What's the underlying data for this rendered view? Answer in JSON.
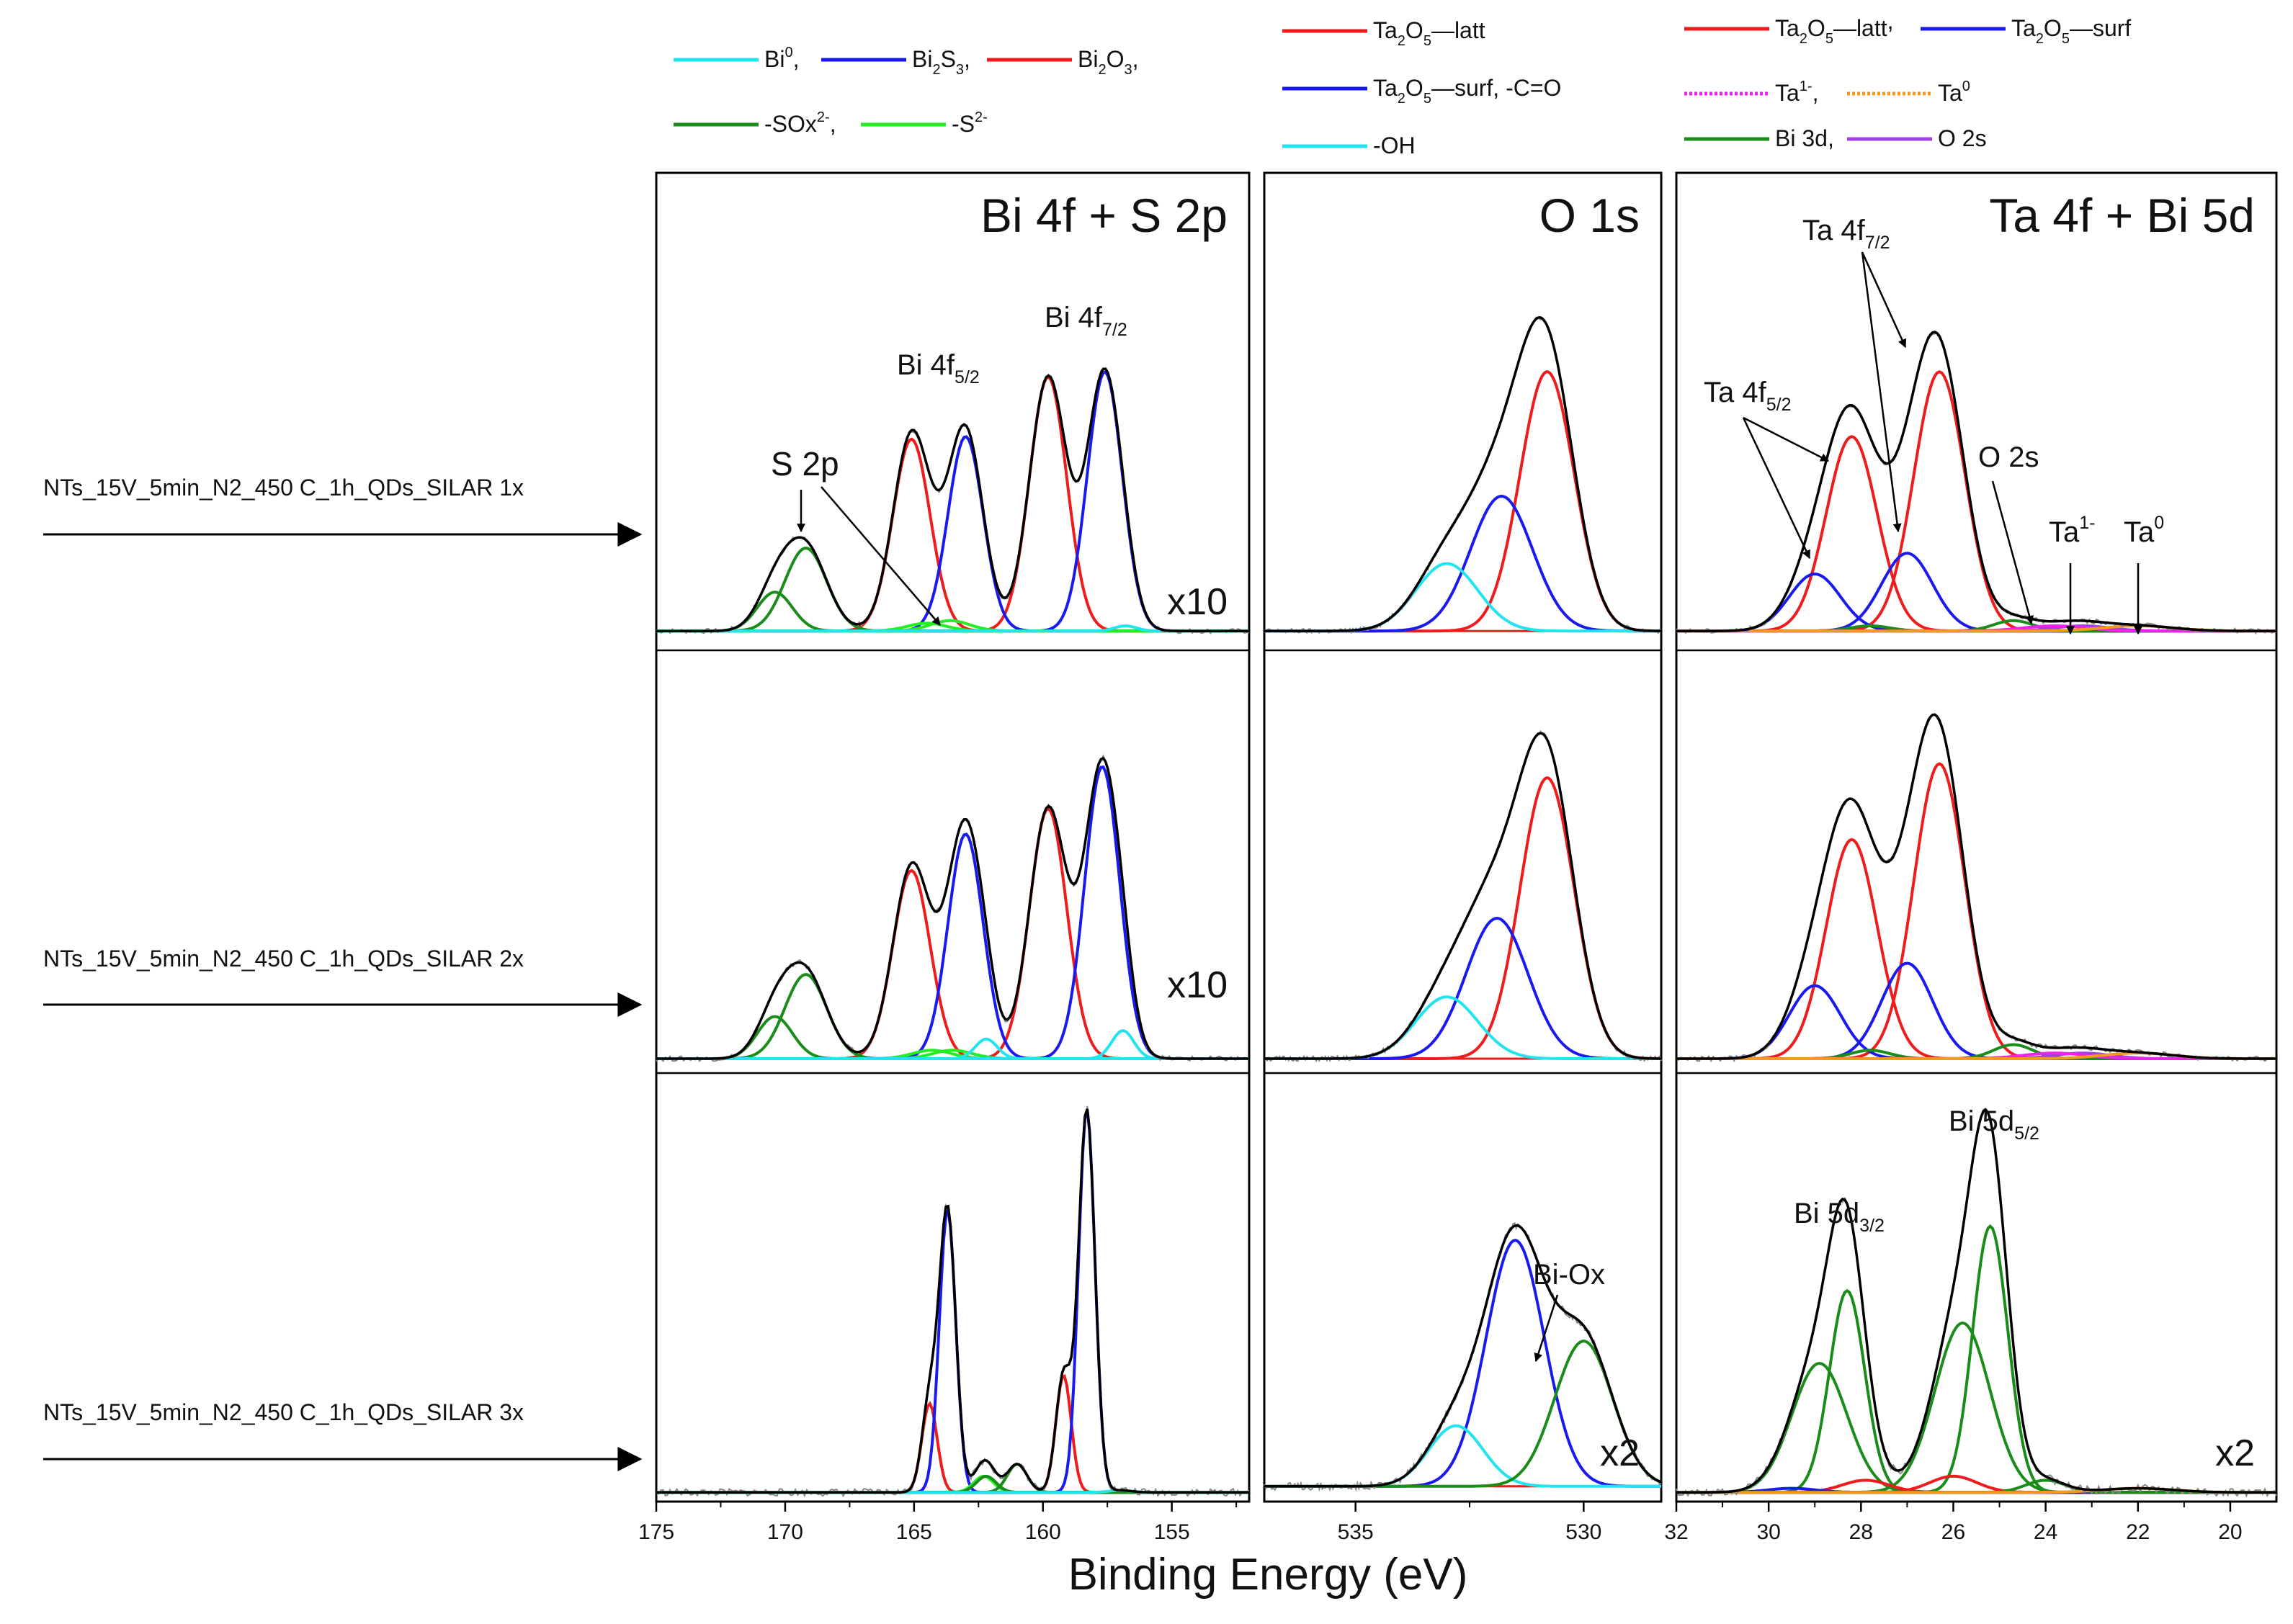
{
  "chart_data": {
    "type": "line",
    "figure": "XPS spectra",
    "xlabel": "Binding Energy (eV)",
    "row_labels": [
      "NTs_15V_5min_N2_450 C_1h_QDs_SILAR 1x",
      "NTs_15V_5min_N2_450 C_1h_QDs_SILAR 2x",
      "NTs_15V_5min_N2_450 C_1h_QDs_SILAR 3x"
    ],
    "colors": {
      "envelope": "#000000",
      "red": "#ee1c1c",
      "blue": "#1a1aee",
      "cyan": "#22e4ee",
      "darkgreen": "#1a8c1a",
      "lightgreen": "#22ee22",
      "magenta": "#ee22ee",
      "orange": "#f39a1e",
      "purple": "#a040e6",
      "grey": "#888888"
    },
    "panels": [
      {
        "title": "Bi 4f + S 2p",
        "xlim": [
          175,
          152
        ],
        "ticks": [
          175,
          170,
          165,
          160,
          155
        ],
        "tick_labels": [
          "175",
          "170",
          "165",
          "160",
          "155"
        ],
        "legend": [
          {
            "label": "Bi",
            "sup": "0",
            "sep": ",",
            "color": "#22e4ee"
          },
          {
            "label": "Bi",
            "sub": "2",
            "label2": "S",
            "sub2": "3",
            "sep": ",",
            "color": "#1a1aee"
          },
          {
            "label": "Bi",
            "sub": "2",
            "label2": "O",
            "sub2": "3",
            "sep": ",",
            "color": "#ee1c1c"
          },
          {
            "label": "-SOx",
            "sup": "2-",
            "sep": ",",
            "color": "#1a8c1a"
          },
          {
            "label": "-S",
            "sup": "2-",
            "sep": "",
            "color": "#22ee22"
          }
        ],
        "annotations": [
          {
            "text": "S 2p"
          },
          {
            "text": "Bi 4f",
            "sub": "5/2"
          },
          {
            "text": "Bi 4f",
            "sub": "7/2"
          }
        ],
        "rows": [
          {
            "multiplier": "x10",
            "baseline": 0.005,
            "components": [
              {
                "name": "Bi2O3 4f5/2",
                "color": "red",
                "center": 165.1,
                "fwhm": 1.7,
                "height": 0.74
              },
              {
                "name": "Bi2O3 4f7/2",
                "color": "red",
                "center": 159.8,
                "fwhm": 1.7,
                "height": 0.98
              },
              {
                "name": "Bi2S3 4f5/2",
                "color": "blue",
                "center": 163.0,
                "fwhm": 1.6,
                "height": 0.75
              },
              {
                "name": "Bi2S3 4f7/2",
                "color": "blue",
                "center": 157.6,
                "fwhm": 1.6,
                "height": 1.0
              },
              {
                "name": "SOx 2p1/2",
                "color": "darkgreen",
                "center": 170.4,
                "fwhm": 1.6,
                "height": 0.15
              },
              {
                "name": "SOx 2p3/2",
                "color": "darkgreen",
                "center": 169.2,
                "fwhm": 1.9,
                "height": 0.32
              },
              {
                "name": "S2- a",
                "color": "lightgreen",
                "center": 164.5,
                "fwhm": 1.8,
                "height": 0.03
              },
              {
                "name": "S2- b",
                "color": "lightgreen",
                "center": 163.6,
                "fwhm": 1.8,
                "height": 0.04
              },
              {
                "name": "Bi0",
                "color": "cyan",
                "center": 156.8,
                "fwhm": 1.0,
                "height": 0.02
              }
            ]
          },
          {
            "multiplier": "x10",
            "baseline": 0.005,
            "components": [
              {
                "name": "Bi2O3 4f5/2",
                "color": "red",
                "center": 165.1,
                "fwhm": 1.7,
                "height": 0.67
              },
              {
                "name": "Bi2O3 4f7/2",
                "color": "red",
                "center": 159.8,
                "fwhm": 1.7,
                "height": 0.89
              },
              {
                "name": "Bi2S3 4f5/2",
                "color": "blue",
                "center": 163.0,
                "fwhm": 1.6,
                "height": 0.8
              },
              {
                "name": "Bi2S3 4f7/2",
                "color": "blue",
                "center": 157.7,
                "fwhm": 1.6,
                "height": 1.04
              },
              {
                "name": "SOx 2p1/2",
                "color": "darkgreen",
                "center": 170.4,
                "fwhm": 1.6,
                "height": 0.15
              },
              {
                "name": "SOx 2p3/2",
                "color": "darkgreen",
                "center": 169.2,
                "fwhm": 1.9,
                "height": 0.3
              },
              {
                "name": "S2- a",
                "color": "lightgreen",
                "center": 164.3,
                "fwhm": 1.8,
                "height": 0.03
              },
              {
                "name": "S2- b",
                "color": "lightgreen",
                "center": 163.5,
                "fwhm": 1.8,
                "height": 0.03
              },
              {
                "name": "Bi0 4f5/2",
                "color": "cyan",
                "center": 162.2,
                "fwhm": 1.0,
                "height": 0.07
              },
              {
                "name": "Bi0 4f7/2",
                "color": "cyan",
                "center": 156.9,
                "fwhm": 1.0,
                "height": 0.1
              }
            ]
          },
          {
            "multiplier": "",
            "baseline": 0.005,
            "components": [
              {
                "name": "Bi2O3 4f5/2",
                "color": "red",
                "center": 164.4,
                "fwhm": 0.7,
                "height": 0.22
              },
              {
                "name": "Bi2O3 4f7/2",
                "color": "red",
                "center": 159.2,
                "fwhm": 0.7,
                "height": 0.29
              },
              {
                "name": "Bi2S3 4f5/2",
                "color": "blue",
                "center": 163.7,
                "fwhm": 0.75,
                "height": 0.7
              },
              {
                "name": "Bi2S3 4f7/2",
                "color": "blue",
                "center": 158.3,
                "fwhm": 0.75,
                "height": 0.95
              },
              {
                "name": "S2- a",
                "color": "lightgreen",
                "center": 162.3,
                "fwhm": 0.9,
                "height": 0.04
              },
              {
                "name": "SOx",
                "color": "darkgreen",
                "center": 161.0,
                "fwhm": 0.9,
                "height": 0.07
              },
              {
                "name": "SOx b",
                "color": "darkgreen",
                "center": 162.2,
                "fwhm": 0.9,
                "height": 0.04
              },
              {
                "name": "Bi0",
                "color": "cyan",
                "center": 157.0,
                "fwhm": 1.0,
                "height": 0.005
              }
            ]
          }
        ]
      },
      {
        "title": "O 1s",
        "xlim": [
          537.0,
          528.3
        ],
        "ticks": [
          535,
          530
        ],
        "tick_labels": [
          "535",
          "530"
        ],
        "legend": [
          {
            "label": "Ta",
            "sub": "2",
            "label2": "O",
            "sub2": "5",
            "label3": "—latt",
            "sep": "",
            "color": "#ee1c1c"
          },
          {
            "label": "Ta",
            "sub": "2",
            "label2": "O",
            "sub2": "5",
            "label3": "—surf, -C=O",
            "sep": "",
            "color": "#1a1aee"
          },
          {
            "label": "-OH",
            "sep": "",
            "color": "#22e4ee"
          }
        ],
        "annotations": [
          {
            "text": "Bi-Ox"
          }
        ],
        "rows": [
          {
            "multiplier": "",
            "baseline": 0.005,
            "components": [
              {
                "name": "Ta2O5 latt",
                "color": "red",
                "center": 530.8,
                "fwhm": 1.4,
                "height": 1.0
              },
              {
                "name": "Ta2O5 surf, -C=O",
                "color": "blue",
                "center": 531.8,
                "fwhm": 1.6,
                "height": 0.52
              },
              {
                "name": "-OH",
                "color": "cyan",
                "center": 533.0,
                "fwhm": 1.6,
                "height": 0.26
              }
            ]
          },
          {
            "multiplier": "",
            "baseline": 0.005,
            "components": [
              {
                "name": "Ta2O5 latt",
                "color": "red",
                "center": 530.8,
                "fwhm": 1.4,
                "height": 1.0
              },
              {
                "name": "Ta2O5 surf, -C=O",
                "color": "blue",
                "center": 531.9,
                "fwhm": 1.6,
                "height": 0.5
              },
              {
                "name": "-OH",
                "color": "cyan",
                "center": 533.0,
                "fwhm": 1.6,
                "height": 0.22
              }
            ]
          },
          {
            "multiplier": "x2",
            "baseline": 0.02,
            "components": [
              {
                "name": "Ta2O5 surf, -C=O",
                "color": "blue",
                "center": 531.5,
                "fwhm": 1.5,
                "height": 0.61
              },
              {
                "name": "-OH",
                "color": "cyan",
                "center": 532.8,
                "fwhm": 1.4,
                "height": 0.15
              },
              {
                "name": "Bi-Ox",
                "color": "darkgreen",
                "center": 530.0,
                "fwhm": 1.5,
                "height": 0.36
              }
            ]
          }
        ]
      },
      {
        "title": "Ta 4f + Bi 5d",
        "xlim": [
          32,
          19
        ],
        "ticks": [
          32,
          30,
          28,
          26,
          24,
          22,
          20
        ],
        "tick_labels": [
          "32",
          "30",
          "28",
          "26",
          "24",
          "22",
          "20"
        ],
        "legend": [
          {
            "label": "Ta",
            "sub": "2",
            "label2": "O",
            "sub2": "5",
            "label3": "—latt",
            "sep": ",",
            "color": "#ee1c1c"
          },
          {
            "label": "Ta",
            "sub": "2",
            "label2": "O",
            "sub2": "5",
            "label3": "—surf",
            "sep": "",
            "color": "#1a1aee"
          },
          {
            "label": "Ta",
            "sup": "1-",
            "sep": ",",
            "color": "#ee22ee",
            "dotted": true
          },
          {
            "label": "Ta",
            "sup": "0",
            "sep": "",
            "color": "#f39a1e",
            "dotted": true
          },
          {
            "label": "Bi 3d",
            "sep": ",",
            "color": "#1a8c1a"
          },
          {
            "label": "O 2s",
            "sep": "",
            "color": "#a040e6"
          }
        ],
        "annotations": [
          {
            "text": "Ta 4f",
            "sub": "7/2"
          },
          {
            "text": "Ta 4f",
            "sub": "5/2"
          },
          {
            "text": "O 2s"
          },
          {
            "text": "Ta",
            "sup": "1-"
          },
          {
            "text": "Ta",
            "sup": "0"
          },
          {
            "text": "Bi 5d",
            "sub": "5/2"
          },
          {
            "text": "Bi 5d",
            "sub": "3/2"
          }
        ],
        "rows": [
          {
            "multiplier": "",
            "baseline": 0.005,
            "components": [
              {
                "name": "Ta2O5 latt 4f5/2",
                "color": "red",
                "center": 28.2,
                "fwhm": 1.3,
                "height": 0.75
              },
              {
                "name": "Ta2O5 latt 4f7/2",
                "color": "red",
                "center": 26.3,
                "fwhm": 1.3,
                "height": 1.0
              },
              {
                "name": "Ta2O5 surf 4f5/2",
                "color": "blue",
                "center": 29.0,
                "fwhm": 1.3,
                "height": 0.22
              },
              {
                "name": "Ta2O5 surf 4f7/2",
                "color": "blue",
                "center": 27.0,
                "fwhm": 1.3,
                "height": 0.3
              },
              {
                "name": "Bi 3d",
                "color": "darkgreen",
                "center": 24.7,
                "fwhm": 1.0,
                "height": 0.04
              },
              {
                "name": "Bi 3d b",
                "color": "darkgreen",
                "center": 27.8,
                "fwhm": 1.0,
                "height": 0.02
              },
              {
                "name": "O 2s",
                "color": "purple",
                "center": 23.2,
                "fwhm": 1.4,
                "height": 0.02
              },
              {
                "name": "Ta1-",
                "color": "magenta",
                "center": 23.8,
                "fwhm": 1.6,
                "height": 0.02
              },
              {
                "name": "Ta0",
                "color": "orange",
                "center": 22.0,
                "fwhm": 1.8,
                "height": 0.02
              }
            ]
          },
          {
            "multiplier": "",
            "baseline": 0.005,
            "components": [
              {
                "name": "Ta2O5 latt 4f5/2",
                "color": "red",
                "center": 28.2,
                "fwhm": 1.3,
                "height": 0.78
              },
              {
                "name": "Ta2O5 latt 4f7/2",
                "color": "red",
                "center": 26.3,
                "fwhm": 1.3,
                "height": 1.05
              },
              {
                "name": "Ta2O5 surf 4f5/2",
                "color": "blue",
                "center": 29.0,
                "fwhm": 1.3,
                "height": 0.26
              },
              {
                "name": "Ta2O5 surf 4f7/2",
                "color": "blue",
                "center": 27.0,
                "fwhm": 1.3,
                "height": 0.34
              },
              {
                "name": "Bi 3d",
                "color": "darkgreen",
                "center": 24.7,
                "fwhm": 1.0,
                "height": 0.05
              },
              {
                "name": "Bi 3d b",
                "color": "darkgreen",
                "center": 27.8,
                "fwhm": 1.0,
                "height": 0.03
              },
              {
                "name": "O 2s",
                "color": "purple",
                "center": 23.2,
                "fwhm": 1.4,
                "height": 0.02
              },
              {
                "name": "Ta1-",
                "color": "magenta",
                "center": 23.8,
                "fwhm": 1.6,
                "height": 0.02
              },
              {
                "name": "Ta0",
                "color": "orange",
                "center": 22.0,
                "fwhm": 1.8,
                "height": 0.02
              }
            ]
          },
          {
            "multiplier": "x2",
            "baseline": 0.005,
            "components": [
              {
                "name": "Bi 5d5/2 main",
                "color": "darkgreen",
                "center": 25.2,
                "fwhm": 0.9,
                "height": 0.66
              },
              {
                "name": "Bi 5d5/2 broad",
                "color": "darkgreen",
                "center": 25.8,
                "fwhm": 1.4,
                "height": 0.42
              },
              {
                "name": "Bi 5d3/2 main",
                "color": "darkgreen",
                "center": 28.3,
                "fwhm": 0.9,
                "height": 0.5
              },
              {
                "name": "Bi 5d3/2 broad",
                "color": "darkgreen",
                "center": 28.9,
                "fwhm": 1.4,
                "height": 0.32
              },
              {
                "name": "Ta2O5 latt a",
                "color": "red",
                "center": 27.9,
                "fwhm": 1.2,
                "height": 0.03
              },
              {
                "name": "Ta2O5 latt b",
                "color": "red",
                "center": 26.0,
                "fwhm": 1.2,
                "height": 0.04
              },
              {
                "name": "Ta2O5 surf",
                "color": "blue",
                "center": 29.5,
                "fwhm": 1.2,
                "height": 0.01
              },
              {
                "name": "Bi 3d small",
                "color": "darkgreen",
                "center": 24.0,
                "fwhm": 1.0,
                "height": 0.03
              },
              {
                "name": "Ta0",
                "color": "orange",
                "center": 22.0,
                "fwhm": 1.8,
                "height": 0.01
              }
            ]
          }
        ]
      }
    ]
  }
}
